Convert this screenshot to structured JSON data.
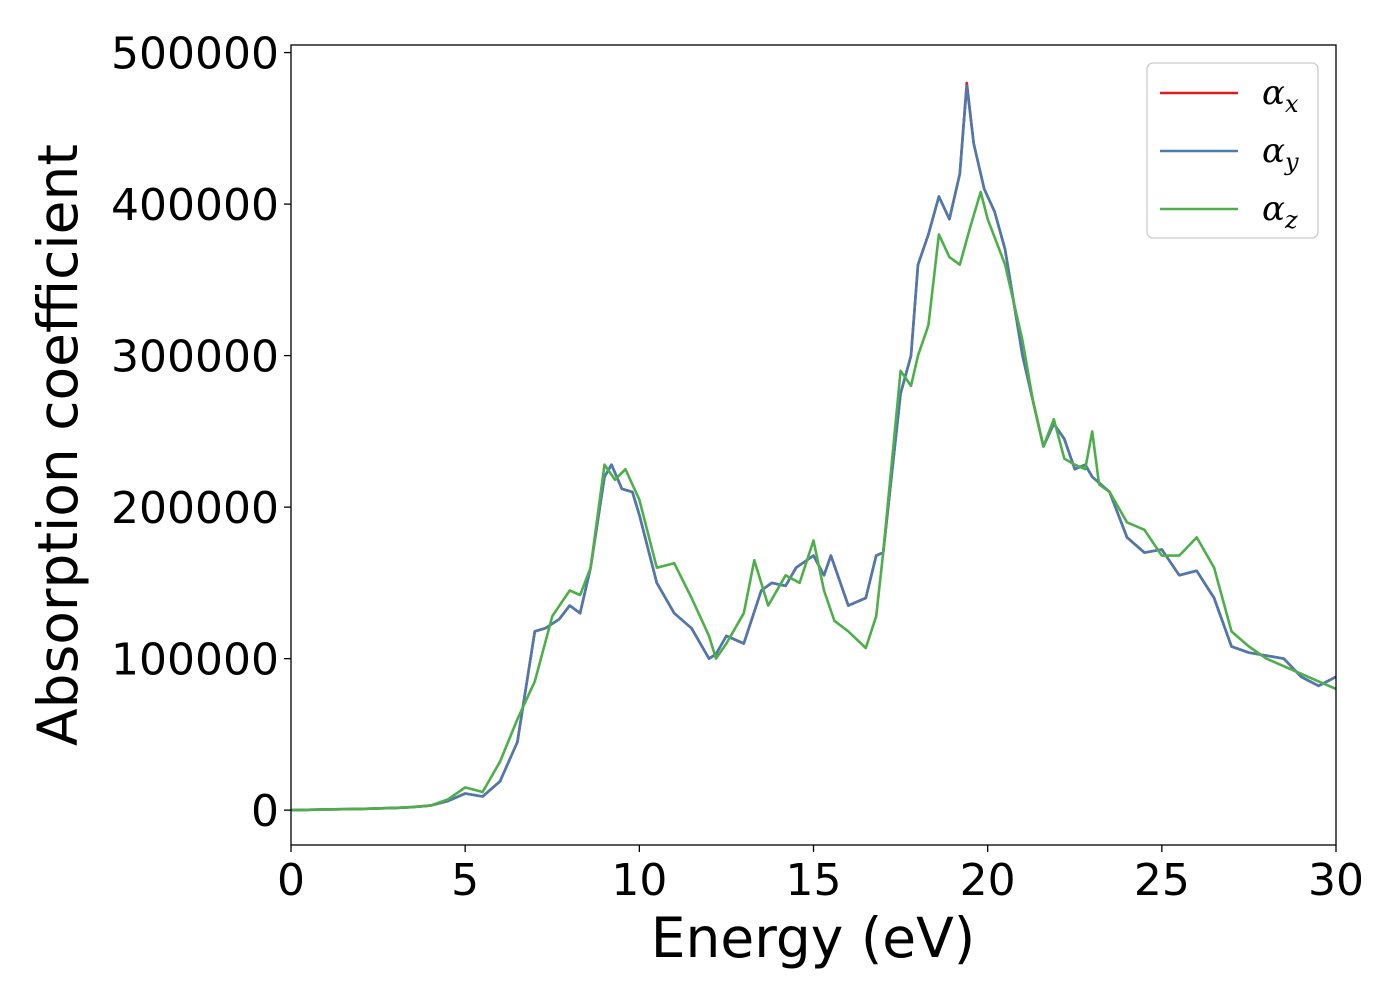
{
  "chart_data": {
    "type": "line",
    "xlabel": "Energy (eV)",
    "ylabel": "Absorption coefficient",
    "xlim": [
      0,
      30
    ],
    "ylim": [
      -23000,
      505000
    ],
    "xticks": [
      0,
      5,
      10,
      15,
      20,
      25,
      30
    ],
    "yticks": [
      0,
      100000,
      200000,
      300000,
      400000,
      500000
    ],
    "grid": false,
    "legend_position": "top-right",
    "series": [
      {
        "name": "α_x",
        "symbol": "α",
        "subscript": "x",
        "color": "#e41a1c",
        "x": [
          0,
          1,
          2,
          3,
          3.5,
          4,
          4.5,
          5,
          5.5,
          6,
          6.5,
          7,
          7.3,
          7.7,
          8,
          8.3,
          8.6,
          9,
          9.2,
          9.5,
          9.8,
          10,
          10.5,
          11,
          11.5,
          12,
          12.2,
          12.5,
          13,
          13.5,
          13.8,
          14.2,
          14.5,
          15,
          15.3,
          15.5,
          16,
          16.5,
          16.8,
          17,
          17.5,
          17.8,
          18,
          18.3,
          18.6,
          18.9,
          19.2,
          19.4,
          19.6,
          19.9,
          20.2,
          20.5,
          21,
          21.3,
          21.6,
          21.9,
          22.2,
          22.5,
          22.8,
          23,
          23.5,
          24,
          24.5,
          25,
          25.5,
          26,
          26.5,
          27,
          27.5,
          28,
          28.5,
          29,
          29.5,
          30
        ],
        "values": [
          0,
          500,
          800,
          1500,
          2000,
          3000,
          6000,
          11000,
          9000,
          19000,
          45000,
          118000,
          120000,
          126000,
          135000,
          130000,
          160000,
          220000,
          228000,
          212000,
          210000,
          195000,
          150000,
          130000,
          120000,
          100000,
          103000,
          115000,
          110000,
          145000,
          150000,
          148000,
          160000,
          168000,
          155000,
          168000,
          135000,
          140000,
          168000,
          170000,
          275000,
          300000,
          360000,
          380000,
          405000,
          390000,
          420000,
          480000,
          440000,
          410000,
          395000,
          370000,
          300000,
          270000,
          240000,
          255000,
          245000,
          225000,
          228000,
          220000,
          210000,
          180000,
          170000,
          172000,
          155000,
          158000,
          140000,
          108000,
          104000,
          102000,
          100000,
          88000,
          82000,
          88000
        ]
      },
      {
        "name": "α_y",
        "symbol": "α",
        "subscript": "y",
        "color": "#4a7ab0",
        "x": [
          0,
          1,
          2,
          3,
          3.5,
          4,
          4.5,
          5,
          5.5,
          6,
          6.5,
          7,
          7.3,
          7.7,
          8,
          8.3,
          8.6,
          9,
          9.2,
          9.5,
          9.8,
          10,
          10.5,
          11,
          11.5,
          12,
          12.2,
          12.5,
          13,
          13.5,
          13.8,
          14.2,
          14.5,
          15,
          15.3,
          15.5,
          16,
          16.5,
          16.8,
          17,
          17.5,
          17.8,
          18,
          18.3,
          18.6,
          18.9,
          19.2,
          19.4,
          19.6,
          19.9,
          20.2,
          20.5,
          21,
          21.3,
          21.6,
          21.9,
          22.2,
          22.5,
          22.8,
          23,
          23.5,
          24,
          24.5,
          25,
          25.5,
          26,
          26.5,
          27,
          27.5,
          28,
          28.5,
          29,
          29.5,
          30
        ],
        "values": [
          0,
          500,
          800,
          1500,
          2000,
          3000,
          6000,
          11000,
          9000,
          19000,
          45000,
          118000,
          120000,
          126000,
          135000,
          130000,
          160000,
          220000,
          228000,
          212000,
          210000,
          195000,
          150000,
          130000,
          120000,
          100000,
          103000,
          115000,
          110000,
          145000,
          150000,
          148000,
          160000,
          168000,
          155000,
          168000,
          135000,
          140000,
          168000,
          170000,
          275000,
          300000,
          360000,
          380000,
          405000,
          390000,
          420000,
          478000,
          440000,
          410000,
          395000,
          370000,
          300000,
          270000,
          240000,
          255000,
          245000,
          225000,
          228000,
          220000,
          210000,
          180000,
          170000,
          172000,
          155000,
          158000,
          140000,
          108000,
          104000,
          102000,
          100000,
          88000,
          82000,
          88000
        ]
      },
      {
        "name": "α_z",
        "symbol": "α",
        "subscript": "z",
        "color": "#4daf4a",
        "x": [
          0,
          1,
          2,
          3,
          3.5,
          4,
          4.5,
          5,
          5.5,
          6,
          6.5,
          7,
          7.5,
          8,
          8.3,
          8.6,
          9,
          9.3,
          9.6,
          10,
          10.5,
          11,
          11.5,
          12,
          12.2,
          12.5,
          13,
          13.3,
          13.7,
          14.2,
          14.6,
          15,
          15.3,
          15.6,
          16,
          16.5,
          16.8,
          17,
          17.5,
          17.8,
          18,
          18.3,
          18.6,
          18.9,
          19.2,
          19.5,
          19.8,
          20,
          20.5,
          21,
          21.3,
          21.6,
          21.9,
          22.2,
          22.5,
          22.8,
          23,
          23.2,
          23.5,
          24,
          24.5,
          25,
          25.5,
          26,
          26.5,
          27,
          27.5,
          28,
          28.5,
          29,
          29.5,
          30
        ],
        "values": [
          0,
          500,
          800,
          1500,
          2000,
          3000,
          7000,
          15000,
          12000,
          32000,
          60000,
          85000,
          128000,
          145000,
          142000,
          160000,
          228000,
          218000,
          225000,
          205000,
          160000,
          163000,
          140000,
          115000,
          100000,
          110000,
          130000,
          165000,
          135000,
          155000,
          150000,
          178000,
          145000,
          125000,
          118000,
          107000,
          128000,
          170000,
          290000,
          280000,
          300000,
          320000,
          380000,
          365000,
          360000,
          385000,
          408000,
          390000,
          360000,
          310000,
          270000,
          240000,
          258000,
          232000,
          228000,
          225000,
          250000,
          215000,
          210000,
          190000,
          185000,
          168000,
          168000,
          180000,
          160000,
          118000,
          108000,
          100000,
          95000,
          90000,
          85000,
          80000
        ]
      }
    ]
  }
}
